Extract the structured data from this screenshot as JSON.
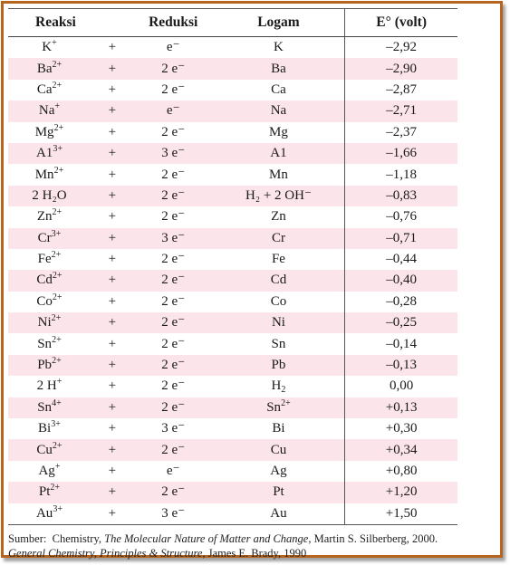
{
  "table": {
    "headers": {
      "reaksi": "Reaksi",
      "reduksi": "Reduksi",
      "logam": "Logam",
      "e0": "E° (volt)"
    },
    "rows": [
      {
        "ion": "K",
        "charge": "+",
        "op": "+",
        "electrons": "e⁻",
        "metal": "K",
        "metal_sub": "",
        "metal_sup": "",
        "e0": "–2,92"
      },
      {
        "ion": "Ba",
        "charge": "2+",
        "op": "+",
        "electrons": "2 e⁻",
        "metal": "Ba",
        "metal_sub": "",
        "metal_sup": "",
        "e0": "–2,90"
      },
      {
        "ion": "Ca",
        "charge": "2+",
        "op": "+",
        "electrons": "2 e⁻",
        "metal": "Ca",
        "metal_sub": "",
        "metal_sup": "",
        "e0": "–2,87"
      },
      {
        "ion": "Na",
        "charge": "+",
        "op": "+",
        "electrons": "e⁻",
        "metal": "Na",
        "metal_sub": "",
        "metal_sup": "",
        "e0": "–2,71"
      },
      {
        "ion": "Mg",
        "charge": "2+",
        "op": "+",
        "electrons": "2 e⁻",
        "metal": "Mg",
        "metal_sub": "",
        "metal_sup": "",
        "e0": "–2,37"
      },
      {
        "ion": "A1",
        "charge": "3+",
        "op": "+",
        "electrons": "3 e⁻",
        "metal": "A1",
        "metal_sub": "",
        "metal_sup": "",
        "e0": "–1,66"
      },
      {
        "ion": "Mn",
        "charge": "2+",
        "op": "+",
        "electrons": "2 e⁻",
        "metal": "Mn",
        "metal_sub": "",
        "metal_sup": "",
        "e0": "–1,18"
      },
      {
        "ion": "2 H₂O",
        "charge": "",
        "op": "+",
        "electrons": "2 e⁻",
        "metal": "H₂ + 2 OH⁻",
        "metal_sub": "",
        "metal_sup": "",
        "e0": "–0,83"
      },
      {
        "ion": "Zn",
        "charge": "2+",
        "op": "+",
        "electrons": "2 e⁻",
        "metal": "Zn",
        "metal_sub": "",
        "metal_sup": "",
        "e0": "–0,76"
      },
      {
        "ion": "Cr",
        "charge": "3+",
        "op": "+",
        "electrons": "3 e⁻",
        "metal": "Cr",
        "metal_sub": "",
        "metal_sup": "",
        "e0": "–0,71"
      },
      {
        "ion": "Fe",
        "charge": "2+",
        "op": "+",
        "electrons": "2 e⁻",
        "metal": "Fe",
        "metal_sub": "",
        "metal_sup": "",
        "e0": "–0,44"
      },
      {
        "ion": "Cd",
        "charge": "2+",
        "op": "+",
        "electrons": "2 e⁻",
        "metal": "Cd",
        "metal_sub": "",
        "metal_sup": "",
        "e0": "–0,40"
      },
      {
        "ion": "Co",
        "charge": "2+",
        "op": "+",
        "electrons": "2 e⁻",
        "metal": "Co",
        "metal_sub": "",
        "metal_sup": "",
        "e0": "–0,28"
      },
      {
        "ion": "Ni",
        "charge": "2+",
        "op": "+",
        "electrons": "2 e⁻",
        "metal": "Ni",
        "metal_sub": "",
        "metal_sup": "",
        "e0": "–0,25"
      },
      {
        "ion": "Sn",
        "charge": "2+",
        "op": "+",
        "electrons": "2 e⁻",
        "metal": "Sn",
        "metal_sub": "",
        "metal_sup": "",
        "e0": "–0,14"
      },
      {
        "ion": "Pb",
        "charge": "2+",
        "op": "+",
        "electrons": "2 e⁻",
        "metal": "Pb",
        "metal_sub": "",
        "metal_sup": "",
        "e0": "–0,13"
      },
      {
        "ion": "2 H",
        "charge": "+",
        "op": "+",
        "electrons": "2 e⁻",
        "metal": "H",
        "metal_sub": "2",
        "metal_sup": "",
        "e0": "0,00"
      },
      {
        "ion": "Sn",
        "charge": "4+",
        "op": "+",
        "electrons": "2 e⁻",
        "metal": "Sn",
        "metal_sub": "",
        "metal_sup": "2+",
        "e0": "+0,13"
      },
      {
        "ion": "Bi",
        "charge": "3+",
        "op": "+",
        "electrons": "3 e⁻",
        "metal": "Bi",
        "metal_sub": "",
        "metal_sup": "",
        "e0": "+0,30"
      },
      {
        "ion": "Cu",
        "charge": "2+",
        "op": "+",
        "electrons": "2 e⁻",
        "metal": "Cu",
        "metal_sub": "",
        "metal_sup": "",
        "e0": "+0,34"
      },
      {
        "ion": "Ag",
        "charge": "+",
        "op": "+",
        "electrons": "e⁻",
        "metal": "Ag",
        "metal_sub": "",
        "metal_sup": "",
        "e0": "+0,80"
      },
      {
        "ion": "Pt",
        "charge": "2+",
        "op": "+",
        "electrons": "2 e⁻",
        "metal": "Pt",
        "metal_sub": "",
        "metal_sup": "",
        "e0": "+1,20"
      },
      {
        "ion": "Au",
        "charge": "3+",
        "op": "+",
        "electrons": "3 e⁻",
        "metal": "Au",
        "metal_sub": "",
        "metal_sup": "",
        "e0": "+1,50"
      }
    ]
  },
  "source": {
    "label": "Sumber:",
    "ref1_pre": "Chemistry, ",
    "ref1_title": "The Molecular Nature of Matter and Change",
    "ref1_post": ", Martin S. Silberberg, 2000.",
    "ref2_title": "General Chemistry, Principles & Structure",
    "ref2_post": ", James E. Brady, 1990"
  },
  "colors": {
    "frame_border": "#b5651d",
    "stripe": "#fbe4ea"
  }
}
